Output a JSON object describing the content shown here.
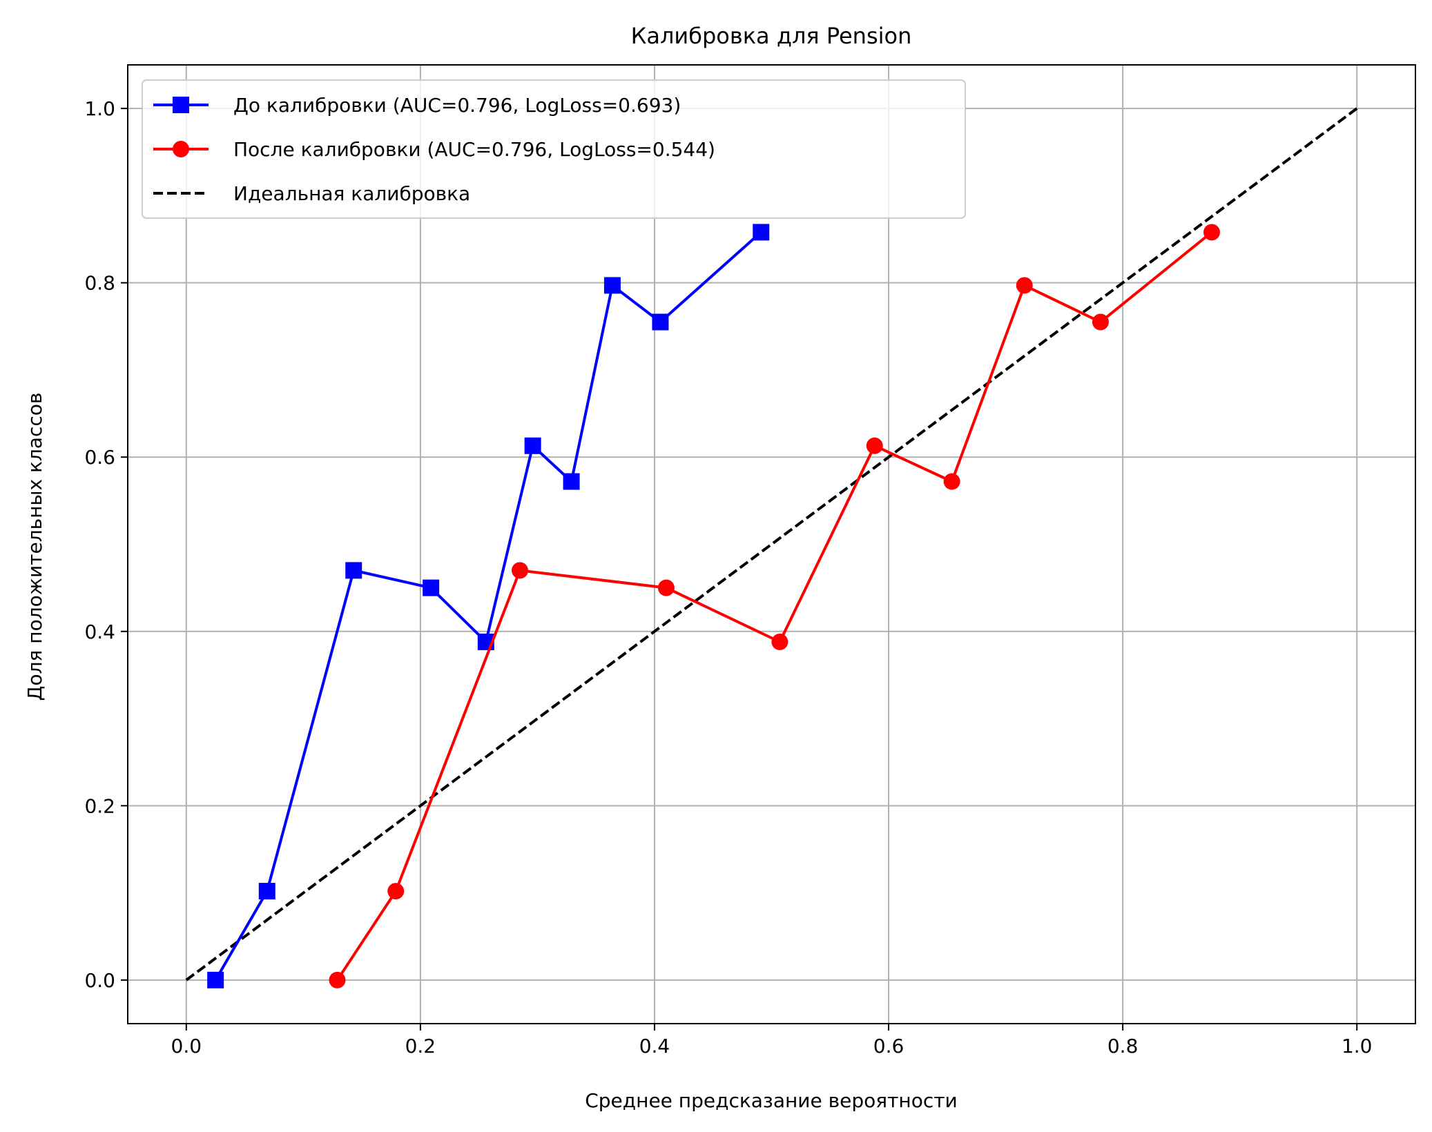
{
  "chart_data": {
    "type": "line",
    "title": "Калибровка для Pension",
    "xlabel": "Среднее предсказание вероятности",
    "ylabel": "Доля положительных классов",
    "xlim": [
      -0.05,
      1.05
    ],
    "ylim": [
      -0.05,
      1.05
    ],
    "xticks": [
      0.0,
      0.2,
      0.4,
      0.6,
      0.8,
      1.0
    ],
    "yticks": [
      0.0,
      0.2,
      0.4,
      0.6,
      0.8,
      1.0
    ],
    "xtick_labels": [
      "0.0",
      "0.2",
      "0.4",
      "0.6",
      "0.8",
      "1.0"
    ],
    "ytick_labels": [
      "0.0",
      "0.2",
      "0.4",
      "0.6",
      "0.8",
      "1.0"
    ],
    "grid": true,
    "legend_position": "upper left",
    "series": [
      {
        "name": "До калибровки (AUC=0.796, LogLoss=0.693)",
        "color": "#0000ff",
        "marker": "square",
        "linestyle": "solid",
        "x": [
          0.025,
          0.069,
          0.143,
          0.209,
          0.256,
          0.296,
          0.329,
          0.364,
          0.405,
          0.491
        ],
        "y": [
          0.0,
          0.102,
          0.47,
          0.45,
          0.388,
          0.613,
          0.572,
          0.797,
          0.755,
          0.858
        ]
      },
      {
        "name": "После калибровки (AUC=0.796, LogLoss=0.544)",
        "color": "#ff0000",
        "marker": "circle",
        "linestyle": "solid",
        "x": [
          0.129,
          0.179,
          0.285,
          0.41,
          0.507,
          0.588,
          0.654,
          0.716,
          0.781,
          0.876
        ],
        "y": [
          0.0,
          0.102,
          0.47,
          0.45,
          0.388,
          0.613,
          0.572,
          0.797,
          0.755,
          0.858
        ]
      },
      {
        "name": "Идеальная калибровка",
        "color": "#000000",
        "marker": "none",
        "linestyle": "dashed",
        "x": [
          0.0,
          1.0
        ],
        "y": [
          0.0,
          1.0
        ]
      }
    ]
  }
}
